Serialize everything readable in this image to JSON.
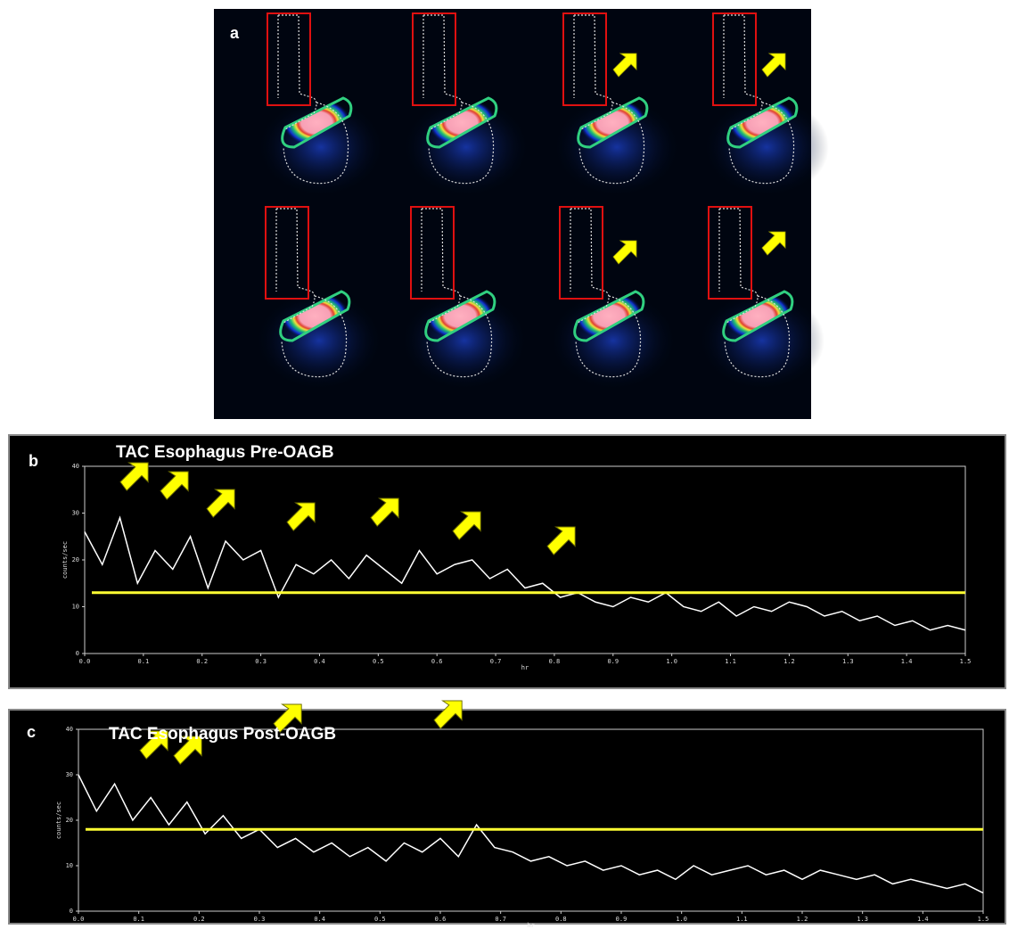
{
  "image_panel": {
    "label": "a"
  },
  "chart_data": [
    {
      "type": "line",
      "panel_label": "b",
      "title": "TAC Esophagus Pre-OAGB",
      "xlabel": "hr",
      "ylabel": "counts/sec",
      "x": [
        0,
        0.03,
        0.06,
        0.09,
        0.12,
        0.15,
        0.18,
        0.21,
        0.24,
        0.27,
        0.3,
        0.33,
        0.36,
        0.39,
        0.42,
        0.45,
        0.48,
        0.51,
        0.54,
        0.57,
        0.6,
        0.63,
        0.66,
        0.69,
        0.72,
        0.75,
        0.78,
        0.81,
        0.84,
        0.87,
        0.9,
        0.93,
        0.96,
        0.99,
        1.02,
        1.05,
        1.08,
        1.11,
        1.14,
        1.17,
        1.2,
        1.23,
        1.26,
        1.29,
        1.32,
        1.35,
        1.38,
        1.41,
        1.44,
        1.47,
        1.5
      ],
      "series": [
        {
          "color": "#ffffff",
          "values": [
            26,
            19,
            29,
            15,
            22,
            18,
            25,
            14,
            24,
            20,
            22,
            12,
            19,
            17,
            20,
            16,
            21,
            18,
            15,
            22,
            17,
            19,
            20,
            16,
            18,
            14,
            15,
            12,
            13,
            11,
            10,
            12,
            11,
            13,
            10,
            9,
            11,
            8,
            10,
            9,
            11,
            10,
            8,
            9,
            7,
            8,
            6,
            7,
            5,
            6,
            5
          ]
        }
      ],
      "threshold": 13,
      "threshold_color": "#ffff33",
      "xlim": [
        0,
        1.5
      ],
      "ylim": [
        0,
        40
      ],
      "xticks": [
        {
          "value": 0,
          "label": "0.0"
        },
        {
          "value": 0.1,
          "label": "0.1"
        },
        {
          "value": 0.2,
          "label": "0.2"
        },
        {
          "value": 0.3,
          "label": "0.3"
        },
        {
          "value": 0.4,
          "label": "0.4"
        },
        {
          "value": 0.5,
          "label": "0.5"
        },
        {
          "value": 0.6,
          "label": "0.6"
        },
        {
          "value": 0.7,
          "label": "0.7"
        },
        {
          "value": 0.8,
          "label": "0.8"
        },
        {
          "value": 0.9,
          "label": "0.9"
        },
        {
          "value": 1,
          "label": "1.0"
        },
        {
          "value": 1.1,
          "label": "1.1"
        },
        {
          "value": 1.2,
          "label": "1.2"
        },
        {
          "value": 1.3,
          "label": "1.3"
        },
        {
          "value": 1.4,
          "label": "1.4"
        },
        {
          "value": 1.5,
          "label": "1.5"
        }
      ],
      "yticks": [
        0,
        10,
        20,
        30,
        40
      ]
    },
    {
      "type": "line",
      "panel_label": "c",
      "title": "TAC Esophagus Post-OAGB",
      "xlabel": "hr",
      "ylabel": "counts/sec",
      "x": [
        0,
        0.03,
        0.06,
        0.09,
        0.12,
        0.15,
        0.18,
        0.21,
        0.24,
        0.27,
        0.3,
        0.33,
        0.36,
        0.39,
        0.42,
        0.45,
        0.48,
        0.51,
        0.54,
        0.57,
        0.6,
        0.63,
        0.66,
        0.69,
        0.72,
        0.75,
        0.78,
        0.81,
        0.84,
        0.87,
        0.9,
        0.93,
        0.96,
        0.99,
        1.02,
        1.05,
        1.08,
        1.11,
        1.14,
        1.17,
        1.2,
        1.23,
        1.26,
        1.29,
        1.32,
        1.35,
        1.38,
        1.41,
        1.44,
        1.47,
        1.5
      ],
      "series": [
        {
          "color": "#ffffff",
          "values": [
            30,
            22,
            28,
            20,
            25,
            19,
            24,
            17,
            21,
            16,
            18,
            14,
            16,
            13,
            15,
            12,
            14,
            11,
            15,
            13,
            16,
            12,
            19,
            14,
            13,
            11,
            12,
            10,
            11,
            9,
            10,
            8,
            9,
            7,
            10,
            8,
            9,
            10,
            8,
            9,
            7,
            9,
            8,
            7,
            8,
            6,
            7,
            6,
            5,
            6,
            4
          ]
        }
      ],
      "threshold": 18,
      "threshold_color": "#ffff33",
      "xlim": [
        0,
        1.5
      ],
      "ylim": [
        0,
        40
      ],
      "xticks": [
        {
          "value": 0,
          "label": "0.0"
        },
        {
          "value": 0.1,
          "label": "0.1"
        },
        {
          "value": 0.2,
          "label": "0.2"
        },
        {
          "value": 0.3,
          "label": "0.3"
        },
        {
          "value": 0.4,
          "label": "0.4"
        },
        {
          "value": 0.5,
          "label": "0.5"
        },
        {
          "value": 0.6,
          "label": "0.6"
        },
        {
          "value": 0.7,
          "label": "0.7"
        },
        {
          "value": 0.8,
          "label": "0.8"
        },
        {
          "value": 0.9,
          "label": "0.9"
        },
        {
          "value": 1,
          "label": "1.0"
        },
        {
          "value": 1.1,
          "label": "1.1"
        },
        {
          "value": 1.2,
          "label": "1.2"
        },
        {
          "value": 1.3,
          "label": "1.3"
        },
        {
          "value": 1.4,
          "label": "1.4"
        },
        {
          "value": 1.5,
          "label": "1.5"
        }
      ],
      "yticks": [
        0,
        10,
        20,
        30,
        40
      ]
    }
  ]
}
